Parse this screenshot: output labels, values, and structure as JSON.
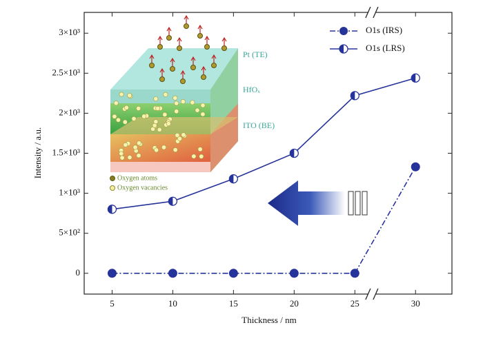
{
  "chart_data": {
    "type": "line",
    "x_label": "Thickness / nm",
    "y_label": "Intensity / a.u.",
    "x": [
      5,
      10,
      15,
      20,
      25,
      30
    ],
    "series": [
      {
        "name": "O1s (IRS)",
        "color": "#26339a",
        "values": [
          0,
          0,
          0,
          0,
          0,
          1330
        ]
      },
      {
        "name": "O1s (LRS)",
        "color": "#26339a",
        "values": [
          800,
          900,
          1180,
          1500,
          2220,
          2440
        ]
      }
    ],
    "xlim": [
      2.7,
      33
    ],
    "xticks": [
      5,
      10,
      15,
      20,
      25,
      30
    ],
    "ylim": [
      -260,
      3260
    ],
    "yticks": [
      0,
      {
        "value": 500,
        "label": "5×10²"
      },
      {
        "value": 1000,
        "label": "1×10³"
      },
      {
        "value": 1500,
        "label": "1.5×10³"
      },
      {
        "value": 2000,
        "label": "2×10³"
      },
      {
        "value": 2500,
        "label": "2.5×10³"
      },
      {
        "value": 3000,
        "label": "3×10³"
      }
    ],
    "legend": "upper right",
    "annotations": [
      "Pt (TE)",
      "HfOₓ",
      "ITO (BE)",
      "Oxygen atoms",
      "Oxygen vacancies"
    ]
  }
}
